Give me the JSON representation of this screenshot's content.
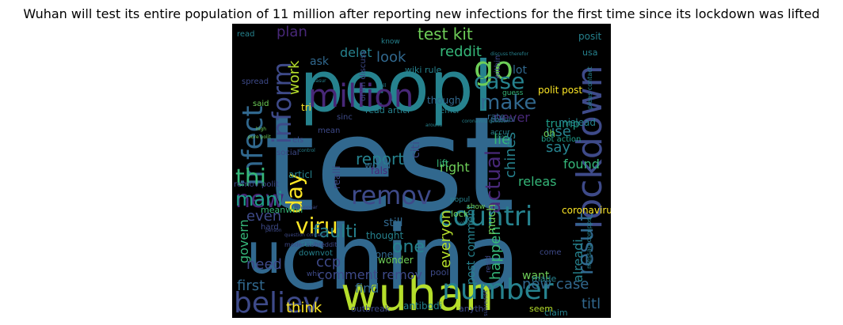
{
  "title": "Wuhan will test its entire population of 11 million after reporting new infections for the first time since its lockdown was lifted",
  "palette": {
    "background": "#000000",
    "purple": "#482878",
    "indigo": "#3e4a89",
    "blue": "#31688e",
    "teal": "#26828e",
    "green": "#1f9e89",
    "lightgreen": "#35b779",
    "lime": "#6ece58",
    "yellowgreen": "#b5de2b",
    "yellow": "#fde725"
  },
  "words": [
    {
      "text": "test",
      "color": "#31688e"
    },
    {
      "text": "china",
      "color": "#31688e"
    },
    {
      "text": "peopl",
      "color": "#26828e"
    },
    {
      "text": "wuhan",
      "color": "#b5de2b"
    },
    {
      "text": "u",
      "color": "#31688e"
    },
    {
      "text": "million",
      "color": "#482878"
    },
    {
      "text": "go",
      "color": "#6ece58"
    },
    {
      "text": "lockdown",
      "color": "#3e4a89"
    },
    {
      "text": "infect",
      "color": "#31688e"
    },
    {
      "text": "inform",
      "color": "#3e4a89"
    },
    {
      "text": "believ",
      "color": "#3e4a89"
    },
    {
      "text": "number",
      "color": "#26828e"
    },
    {
      "text": "countri",
      "color": "#26828e"
    },
    {
      "text": "result",
      "color": "#31688e"
    },
    {
      "text": "case",
      "color": "#26828e"
    },
    {
      "text": "make",
      "color": "#31688e"
    },
    {
      "text": "new",
      "color": "#482878"
    },
    {
      "text": "thi",
      "color": "#35b779"
    },
    {
      "text": "mani",
      "color": "#1f9e89"
    },
    {
      "text": "day",
      "color": "#fde725"
    },
    {
      "text": "viru",
      "color": "#fde725"
    },
    {
      "text": "remov",
      "color": "#3e4a89"
    },
    {
      "text": "actual",
      "color": "#482878"
    },
    {
      "text": "test kit",
      "color": "#6ece58"
    },
    {
      "text": "plan",
      "color": "#482878"
    },
    {
      "text": "delet",
      "color": "#26828e"
    },
    {
      "text": "look",
      "color": "#31688e"
    },
    {
      "text": "reddit",
      "color": "#35b779"
    },
    {
      "text": "work",
      "color": "#b5de2b"
    },
    {
      "text": "report",
      "color": "#26828e"
    },
    {
      "text": "say",
      "color": "#26828e"
    },
    {
      "text": "use",
      "color": "#26828e"
    },
    {
      "text": "lie",
      "color": "#35b779"
    },
    {
      "text": "chines",
      "color": "#26828e"
    },
    {
      "text": "faulti",
      "color": "#26828e"
    },
    {
      "text": "everyon",
      "color": "#b5de2b"
    },
    {
      "text": "one",
      "color": "#26828e"
    },
    {
      "text": "happen",
      "color": "#35b779"
    },
    {
      "text": "alreadi",
      "color": "#26828e"
    },
    {
      "text": "new case",
      "color": "#31688e"
    },
    {
      "text": "think",
      "color": "#fde725"
    },
    {
      "text": "titl",
      "color": "#31688e"
    },
    {
      "text": "ccp",
      "color": "#3e4a89"
    },
    {
      "text": "even",
      "color": "#3e4a89"
    },
    {
      "text": "govern",
      "color": "#35b779"
    },
    {
      "text": "need",
      "color": "#3e4a89"
    },
    {
      "text": "first",
      "color": "#31688e"
    },
    {
      "text": "comment remov",
      "color": "#3e4a89"
    },
    {
      "text": "post comment",
      "color": "#26828e"
    },
    {
      "text": "find",
      "color": "#31688e"
    },
    {
      "text": "want",
      "color": "#6ece58"
    },
    {
      "text": "still",
      "color": "#31688e"
    },
    {
      "text": "right",
      "color": "#6ece58"
    },
    {
      "text": "releas",
      "color": "#35b779"
    },
    {
      "text": "found",
      "color": "#35b779"
    },
    {
      "text": "trump",
      "color": "#1f9e89"
    },
    {
      "text": "coronaviru",
      "color": "#fde725"
    },
    {
      "text": "much",
      "color": "#6ece58"
    },
    {
      "text": "never",
      "color": "#482878"
    },
    {
      "text": "polit post",
      "color": "#fde725"
    },
    {
      "text": "ask",
      "color": "#31688e"
    },
    {
      "text": "lot",
      "color": "#31688e"
    },
    {
      "text": "posit",
      "color": "#26828e"
    },
    {
      "text": "though",
      "color": "#31688e"
    },
    {
      "text": "read articl",
      "color": "#26828e"
    },
    {
      "text": "world",
      "color": "#31688e"
    },
    {
      "text": "citi",
      "color": "#3e4a89"
    },
    {
      "text": "wiki rule",
      "color": "#26828e"
    },
    {
      "text": "onlin discuss",
      "color": "#3e4a89"
    },
    {
      "text": "spread",
      "color": "#3e4a89"
    },
    {
      "text": "read",
      "color": "#26828e"
    },
    {
      "text": "mean",
      "color": "#3e4a89"
    },
    {
      "text": "sinc",
      "color": "#3e4a89"
    },
    {
      "text": "els",
      "color": "#3e4a89"
    },
    {
      "text": "social",
      "color": "#3e4a89"
    },
    {
      "text": "tri",
      "color": "#fde725"
    },
    {
      "text": "said",
      "color": "#6ece58"
    },
    {
      "text": "articl",
      "color": "#26828e"
    },
    {
      "text": "realli",
      "color": "#3e4a89"
    },
    {
      "text": "remov polit",
      "color": "#3e4a89"
    },
    {
      "text": "meanwhil",
      "color": "#35b779"
    },
    {
      "text": "hard",
      "color": "#3e4a89"
    },
    {
      "text": "done",
      "color": "#31688e"
    },
    {
      "text": "thought",
      "color": "#26828e"
    },
    {
      "text": "wonder",
      "color": "#6ece58"
    },
    {
      "text": "made",
      "color": "#26828e"
    },
    {
      "text": "pool",
      "color": "#3e4a89"
    },
    {
      "text": "downvot",
      "color": "#26828e"
    },
    {
      "text": "sub",
      "color": "#26828e"
    },
    {
      "text": "outbreak",
      "color": "#3e4a89"
    },
    {
      "text": "antibodi",
      "color": "#26828e"
    },
    {
      "text": "anyth",
      "color": "#3e4a89"
    },
    {
      "text": "seem",
      "color": "#b5de2b"
    },
    {
      "text": "claim",
      "color": "#26828e"
    },
    {
      "text": "lift",
      "color": "#35b779"
    },
    {
      "text": "fals",
      "color": "#482878"
    },
    {
      "text": "lock",
      "color": "#6ece58"
    },
    {
      "text": "show",
      "color": "#6ece58"
    },
    {
      "text": "messag compos",
      "color": "#26828e"
    },
    {
      "text": "oh",
      "color": "#6ece58"
    },
    {
      "text": "rate",
      "color": "#31688e"
    },
    {
      "text": "bot action",
      "color": "#1f9e89"
    },
    {
      "text": "mislead",
      "color": "#26828e"
    },
    {
      "text": "effici",
      "color": "#26828e"
    },
    {
      "text": "possibl",
      "color": "#31688e"
    },
    {
      "text": "within",
      "color": "#3e4a89"
    },
    {
      "text": "know",
      "color": "#26828e"
    },
    {
      "text": "guess",
      "color": "#35b779"
    },
    {
      "text": "accur",
      "color": "#26828e"
    },
    {
      "text": "usa",
      "color": "#26828e"
    },
    {
      "text": "pleas contact",
      "color": "#26828e"
    },
    {
      "text": "popul",
      "color": "#26828e"
    },
    {
      "text": "subreddit",
      "color": "#3e4a89"
    },
    {
      "text": "whi",
      "color": "#3e4a89"
    },
    {
      "text": "come",
      "color": "#3e4a89"
    },
    {
      "text": "moder subreddit",
      "color": "#3e4a89"
    },
    {
      "text": "question concern",
      "color": "#3e4a89"
    },
    {
      "text": "coronaviru question",
      "color": "#26828e"
    },
    {
      "text": "discuss therefor",
      "color": "#26828e"
    },
    {
      "text": "around",
      "color": "#26828e"
    },
    {
      "text": "high",
      "color": "#6ece58"
    },
    {
      "text": "pure polit",
      "color": "#6ece58"
    },
    {
      "text": "control",
      "color": "#26828e"
    },
    {
      "text": "ding",
      "color": "#26828e"
    },
    {
      "text": "measur",
      "color": "#26828e"
    },
    {
      "text": "call",
      "color": "#26828e"
    },
    {
      "text": "nobodi",
      "color": "#26828e"
    },
    {
      "text": "person",
      "color": "#3e4a89"
    },
    {
      "text": "disappear",
      "color": "#3e4a89"
    },
    {
      "text": "resid",
      "color": "#3e4a89"
    }
  ]
}
